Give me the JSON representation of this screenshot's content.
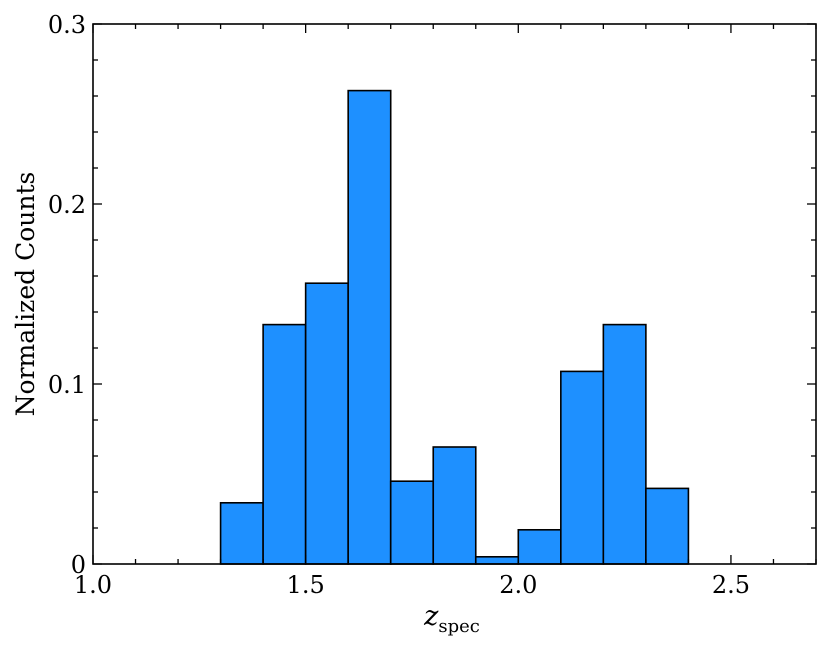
{
  "chart_data": {
    "type": "bar",
    "title": "",
    "xlabel": "z",
    "xlabel_subscript": "spec",
    "ylabel": "Normalized Counts",
    "xlim": [
      1.0,
      2.7
    ],
    "ylim": [
      0,
      0.3
    ],
    "x_ticks": [
      1.0,
      1.5,
      2.0,
      2.5
    ],
    "x_tick_labels": [
      "1.0",
      "1.5",
      "2.0",
      "2.5"
    ],
    "y_ticks": [
      0,
      0.1,
      0.2,
      0.3
    ],
    "y_tick_labels": [
      "0",
      "0.1",
      "0.2",
      "0.3"
    ],
    "bin_edges": [
      1.3,
      1.4,
      1.5,
      1.6,
      1.7,
      1.8,
      1.9,
      2.0,
      2.1,
      2.2,
      2.3,
      2.4
    ],
    "values": [
      0.034,
      0.133,
      0.156,
      0.263,
      0.046,
      0.065,
      0.004,
      0.019,
      0.107,
      0.133,
      0.042
    ],
    "bar_color": "#1e90ff",
    "edge_color": "#000000",
    "grid": false
  }
}
